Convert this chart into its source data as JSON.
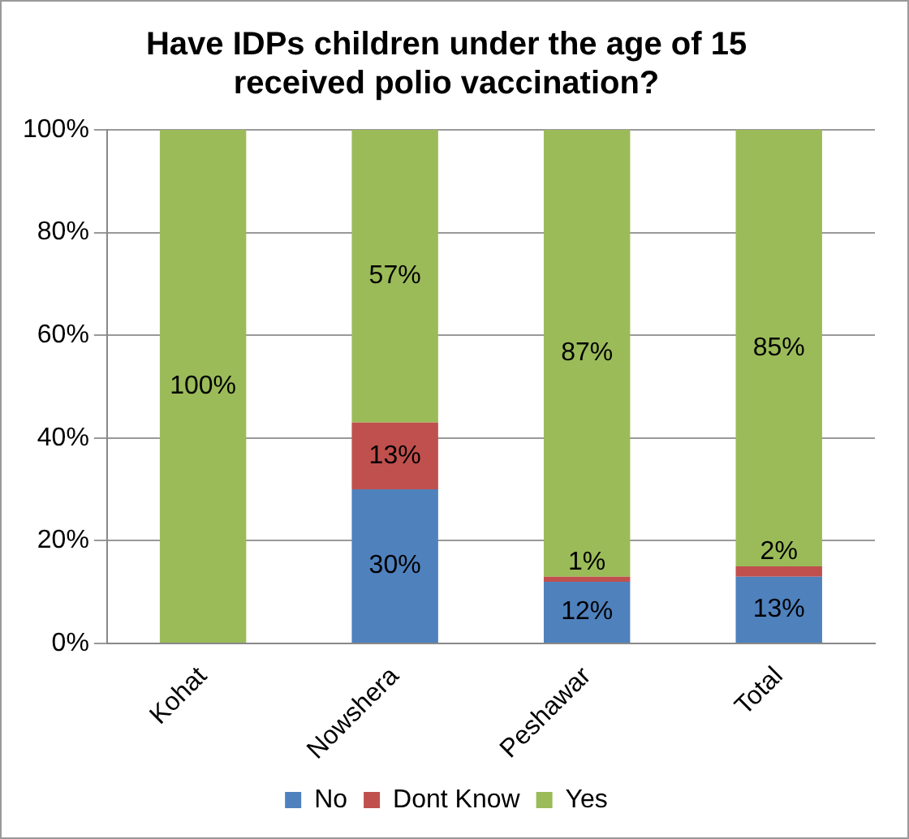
{
  "chart_data": {
    "type": "bar",
    "title": "Have IDPs children under the age of 15 received polio vaccination?",
    "categories": [
      "Kohat",
      "Nowshera",
      "Peshawar",
      "Total"
    ],
    "stacked": true,
    "ylim": [
      0,
      100
    ],
    "yticks": [
      {
        "value": 0,
        "label": "0%"
      },
      {
        "value": 20,
        "label": "20%"
      },
      {
        "value": 40,
        "label": "40%"
      },
      {
        "value": 60,
        "label": "60%"
      },
      {
        "value": 80,
        "label": "80%"
      },
      {
        "value": 100,
        "label": "100%"
      }
    ],
    "grid": "y",
    "legend": "bottom",
    "series": [
      {
        "name": "No",
        "color": "#4f81bd",
        "values": [
          0,
          30,
          12,
          13
        ],
        "value_labels": [
          null,
          "30%",
          "12%",
          "13%"
        ]
      },
      {
        "name": "Dont Know",
        "color": "#c0504d",
        "values": [
          0,
          13,
          1,
          2
        ],
        "value_labels": [
          null,
          "13%",
          "1%",
          "2%"
        ]
      },
      {
        "name": "Yes",
        "color": "#9bbb59",
        "values": [
          100,
          57,
          87,
          85
        ],
        "value_labels": [
          "100%",
          "57%",
          "87%",
          "85%"
        ]
      }
    ]
  }
}
